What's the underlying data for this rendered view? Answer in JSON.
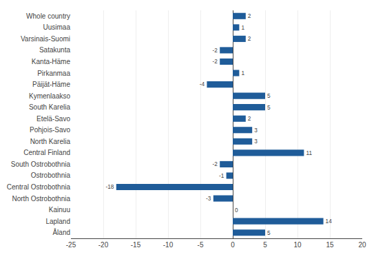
{
  "chart_data": {
    "type": "bar",
    "orientation": "horizontal",
    "categories": [
      "Åland",
      "Lapland",
      "Kainuu",
      "North Ostrobothnia",
      "Central Ostrobothnia",
      "Ostrobothnia",
      "South Ostrobothnia",
      "Central Finland",
      "North Karelia",
      "Pohjois-Savo",
      "Etelä-Savo",
      "South Karelia",
      "Kymenlaakso",
      "Päijät-Häme",
      "Pirkanmaa",
      "Kanta-Häme",
      "Satakunta",
      "Varsinais-Suomi",
      "Uusimaa",
      "Whole country"
    ],
    "values": [
      5,
      14,
      0,
      -3,
      -18,
      -1,
      -2,
      11,
      3,
      3,
      2,
      5,
      5,
      -4,
      1,
      -2,
      -2,
      2,
      1,
      2
    ],
    "color": "#1F5C99",
    "xlim": [
      -25,
      20
    ],
    "xticks": [
      -25,
      -20,
      -15,
      -10,
      -5,
      0,
      5,
      10,
      15,
      20
    ],
    "grid": true,
    "data_labels": true
  }
}
